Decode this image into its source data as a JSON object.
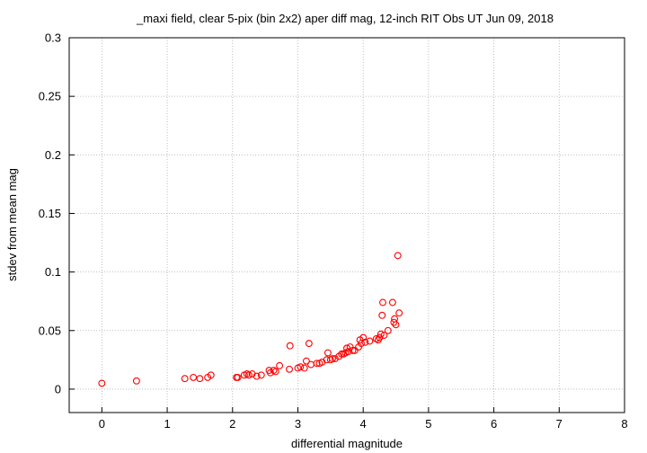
{
  "chart_data": {
    "type": "scatter",
    "title": "_maxi field, clear 5-pix (bin 2x2) aper diff mag,  12-inch RIT Obs UT Jun 09, 2018",
    "xlabel": "differential magnitude",
    "ylabel": "stdev from mean mag",
    "xlim": [
      -0.5,
      8
    ],
    "ylim": [
      -0.02,
      0.3
    ],
    "x_ticks": [
      "0",
      "1",
      "2",
      "3",
      "4",
      "5",
      "6",
      "7",
      "8"
    ],
    "y_ticks": [
      "0",
      "0.05",
      "0.1",
      "0.15",
      "0.2",
      "0.25",
      "0.3"
    ],
    "grid": true,
    "marker_color": "#ff0000",
    "series": [
      {
        "points": [
          [
            0.0,
            0.005
          ],
          [
            0.53,
            0.007
          ],
          [
            1.27,
            0.009
          ],
          [
            1.4,
            0.01
          ],
          [
            1.5,
            0.009
          ],
          [
            1.62,
            0.01
          ],
          [
            1.67,
            0.012
          ],
          [
            2.06,
            0.01
          ],
          [
            2.08,
            0.01
          ],
          [
            2.18,
            0.012
          ],
          [
            2.22,
            0.013
          ],
          [
            2.25,
            0.012
          ],
          [
            2.3,
            0.013
          ],
          [
            2.37,
            0.011
          ],
          [
            2.44,
            0.012
          ],
          [
            2.56,
            0.016
          ],
          [
            2.58,
            0.014
          ],
          [
            2.63,
            0.016
          ],
          [
            2.66,
            0.015
          ],
          [
            2.72,
            0.02
          ],
          [
            2.87,
            0.017
          ],
          [
            2.88,
            0.037
          ],
          [
            3.0,
            0.018
          ],
          [
            3.04,
            0.019
          ],
          [
            3.1,
            0.018
          ],
          [
            3.13,
            0.024
          ],
          [
            3.17,
            0.039
          ],
          [
            3.2,
            0.021
          ],
          [
            3.29,
            0.022
          ],
          [
            3.33,
            0.022
          ],
          [
            3.37,
            0.023
          ],
          [
            3.44,
            0.025
          ],
          [
            3.46,
            0.031
          ],
          [
            3.5,
            0.025
          ],
          [
            3.53,
            0.026
          ],
          [
            3.57,
            0.026
          ],
          [
            3.63,
            0.028
          ],
          [
            3.67,
            0.03
          ],
          [
            3.7,
            0.03
          ],
          [
            3.73,
            0.031
          ],
          [
            3.75,
            0.035
          ],
          [
            3.77,
            0.032
          ],
          [
            3.8,
            0.036
          ],
          [
            3.84,
            0.033
          ],
          [
            3.87,
            0.033
          ],
          [
            3.93,
            0.036
          ],
          [
            3.95,
            0.042
          ],
          [
            3.97,
            0.039
          ],
          [
            4.0,
            0.044
          ],
          [
            4.03,
            0.04
          ],
          [
            4.1,
            0.041
          ],
          [
            4.2,
            0.043
          ],
          [
            4.23,
            0.042
          ],
          [
            4.25,
            0.044
          ],
          [
            4.27,
            0.047
          ],
          [
            4.29,
            0.063
          ],
          [
            4.3,
            0.074
          ],
          [
            4.32,
            0.046
          ],
          [
            4.38,
            0.05
          ],
          [
            4.45,
            0.074
          ],
          [
            4.47,
            0.057
          ],
          [
            4.48,
            0.06
          ],
          [
            4.5,
            0.055
          ],
          [
            4.53,
            0.114
          ],
          [
            4.55,
            0.065
          ]
        ]
      }
    ]
  }
}
